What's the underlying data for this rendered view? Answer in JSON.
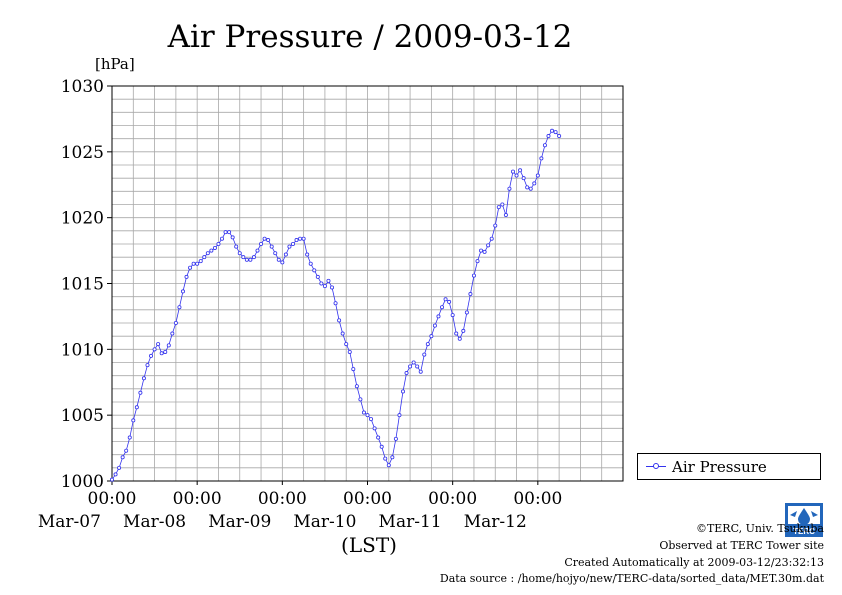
{
  "chart_data": {
    "type": "line",
    "title": "Air Pressure / 2009-03-12",
    "ylabel": "[hPa]",
    "xlabel": "(LST)",
    "ylim": [
      1000,
      1030
    ],
    "yticks": [
      "1000",
      "1005",
      "1010",
      "1015",
      "1020",
      "1025",
      "1030"
    ],
    "x_range_hours": [
      0,
      144
    ],
    "xticks": [
      {
        "time": "00:00",
        "date": "Mar-07"
      },
      {
        "time": "00:00",
        "date": "Mar-08"
      },
      {
        "time": "00:00",
        "date": "Mar-09"
      },
      {
        "time": "00:00",
        "date": "Mar-10"
      },
      {
        "time": "00:00",
        "date": "Mar-11"
      },
      {
        "time": "00:00",
        "date": "Mar-12"
      }
    ],
    "grid": true,
    "legend": "right",
    "series": [
      {
        "name": "Air Pressure",
        "color": "#3333ee",
        "points": [
          [
            0,
            1000.1
          ],
          [
            1,
            1000.5
          ],
          [
            2,
            1001.0
          ],
          [
            3,
            1001.8
          ],
          [
            4,
            1002.3
          ],
          [
            5,
            1003.3
          ],
          [
            6,
            1004.6
          ],
          [
            7,
            1005.6
          ],
          [
            8,
            1006.7
          ],
          [
            9,
            1007.8
          ],
          [
            10,
            1008.8
          ],
          [
            11,
            1009.5
          ],
          [
            12,
            1010.0
          ],
          [
            13,
            1010.4
          ],
          [
            14,
            1009.7
          ],
          [
            15,
            1009.8
          ],
          [
            16,
            1010.3
          ],
          [
            17,
            1011.2
          ],
          [
            18,
            1012.0
          ],
          [
            19,
            1013.2
          ],
          [
            20,
            1014.4
          ],
          [
            21,
            1015.5
          ],
          [
            22,
            1016.2
          ],
          [
            23,
            1016.5
          ],
          [
            24,
            1016.5
          ],
          [
            25,
            1016.7
          ],
          [
            26,
            1017.0
          ],
          [
            27,
            1017.3
          ],
          [
            28,
            1017.5
          ],
          [
            29,
            1017.7
          ],
          [
            30,
            1018.0
          ],
          [
            31,
            1018.4
          ],
          [
            32,
            1018.9
          ],
          [
            33,
            1018.9
          ],
          [
            34,
            1018.5
          ],
          [
            35,
            1017.8
          ],
          [
            36,
            1017.3
          ],
          [
            37,
            1017.0
          ],
          [
            38,
            1016.8
          ],
          [
            39,
            1016.8
          ],
          [
            40,
            1017.0
          ],
          [
            41,
            1017.5
          ],
          [
            42,
            1018.0
          ],
          [
            43,
            1018.4
          ],
          [
            44,
            1018.3
          ],
          [
            45,
            1017.8
          ],
          [
            46,
            1017.3
          ],
          [
            47,
            1016.8
          ],
          [
            48,
            1016.6
          ],
          [
            49,
            1017.2
          ],
          [
            50,
            1017.8
          ],
          [
            51,
            1018.0
          ],
          [
            52,
            1018.3
          ],
          [
            53,
            1018.4
          ],
          [
            54,
            1018.4
          ],
          [
            55,
            1017.2
          ],
          [
            56,
            1016.5
          ],
          [
            57,
            1016.0
          ],
          [
            58,
            1015.5
          ],
          [
            59,
            1015.0
          ],
          [
            60,
            1014.8
          ],
          [
            61,
            1015.2
          ],
          [
            62,
            1014.7
          ],
          [
            63,
            1013.5
          ],
          [
            64,
            1012.2
          ],
          [
            65,
            1011.2
          ],
          [
            66,
            1010.4
          ],
          [
            67,
            1009.8
          ],
          [
            68,
            1008.5
          ],
          [
            69,
            1007.2
          ],
          [
            70,
            1006.2
          ],
          [
            71,
            1005.2
          ],
          [
            72,
            1005.0
          ],
          [
            73,
            1004.7
          ],
          [
            74,
            1004.0
          ],
          [
            75,
            1003.3
          ],
          [
            76,
            1002.6
          ],
          [
            77,
            1001.7
          ],
          [
            78,
            1001.2
          ],
          [
            79,
            1001.8
          ],
          [
            80,
            1003.2
          ],
          [
            81,
            1005.0
          ],
          [
            82,
            1006.8
          ],
          [
            83,
            1008.2
          ],
          [
            84,
            1008.7
          ],
          [
            85,
            1009.0
          ],
          [
            86,
            1008.7
          ],
          [
            87,
            1008.3
          ],
          [
            88,
            1009.6
          ],
          [
            89,
            1010.4
          ],
          [
            90,
            1011.0
          ],
          [
            91,
            1011.8
          ],
          [
            92,
            1012.5
          ],
          [
            93,
            1013.2
          ],
          [
            94,
            1013.8
          ],
          [
            95,
            1013.6
          ],
          [
            96,
            1012.6
          ],
          [
            97,
            1011.2
          ],
          [
            98,
            1010.8
          ],
          [
            99,
            1011.4
          ],
          [
            100,
            1012.8
          ],
          [
            101,
            1014.2
          ],
          [
            102,
            1015.6
          ],
          [
            103,
            1016.7
          ],
          [
            104,
            1017.5
          ],
          [
            105,
            1017.4
          ],
          [
            106,
            1017.9
          ],
          [
            107,
            1018.4
          ],
          [
            108,
            1019.4
          ],
          [
            109,
            1020.8
          ],
          [
            110,
            1021.0
          ],
          [
            111,
            1020.2
          ],
          [
            112,
            1022.2
          ],
          [
            113,
            1023.5
          ],
          [
            114,
            1023.2
          ],
          [
            115,
            1023.6
          ],
          [
            116,
            1023.0
          ],
          [
            117,
            1022.3
          ],
          [
            118,
            1022.2
          ],
          [
            119,
            1022.6
          ],
          [
            120,
            1023.2
          ],
          [
            121,
            1024.5
          ],
          [
            122,
            1025.5
          ],
          [
            123,
            1026.2
          ],
          [
            124,
            1026.6
          ],
          [
            125,
            1026.5
          ],
          [
            126,
            1026.2
          ]
        ]
      }
    ]
  },
  "credits": {
    "copyright": "©TERC, Univ. Tsukuba",
    "observed": "Observed at TERC Tower site",
    "created": "Created Automatically at 2009-03-12/23:32:13",
    "source": "Data source : /home/hojyo/new/TERC-data/sorted_data/MET.30m.dat",
    "logo_text": "TERC"
  }
}
